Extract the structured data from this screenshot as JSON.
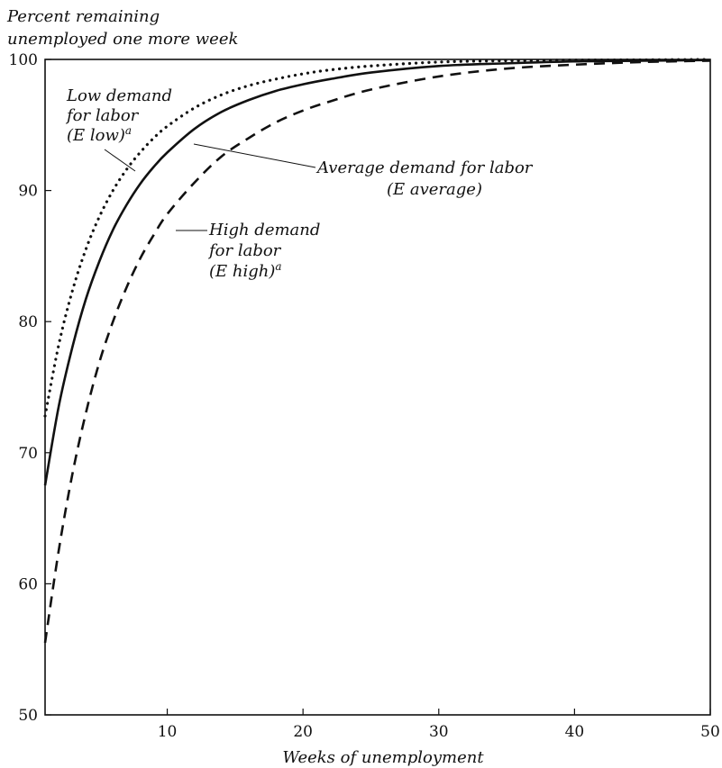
{
  "chart_data": {
    "type": "line",
    "title": "",
    "ylabel_lines": [
      "Percent remaining",
      "unemployed one more week"
    ],
    "xlabel": "Weeks of unemployment",
    "xlim": [
      1,
      50
    ],
    "ylim": [
      50,
      100
    ],
    "x_ticks": [
      10,
      20,
      30,
      40,
      50
    ],
    "x_tick_labels": [
      "10",
      "20",
      "30",
      "40",
      "50"
    ],
    "y_ticks": [
      50,
      60,
      70,
      80,
      90,
      100
    ],
    "y_tick_labels": [
      "50",
      "60",
      "70",
      "80",
      "90",
      "100"
    ],
    "grid": false,
    "series": [
      {
        "name": "Low demand for labor (E low)",
        "style": "dotted",
        "x": [
          1,
          2,
          3,
          4,
          5,
          6,
          7,
          8,
          9,
          10,
          12,
          14,
          16,
          18,
          20,
          22,
          25,
          30,
          35,
          40,
          45,
          50
        ],
        "y": [
          72.8,
          78.2,
          82.3,
          85.5,
          88.0,
          90.0,
          91.6,
          92.9,
          94.0,
          94.9,
          96.3,
          97.3,
          98.0,
          98.5,
          98.9,
          99.2,
          99.5,
          99.8,
          99.9,
          99.95,
          99.97,
          100
        ]
      },
      {
        "name": "Average demand for labor (E average)",
        "style": "solid",
        "x": [
          1,
          2,
          3,
          4,
          5,
          6,
          7,
          8,
          9,
          10,
          12,
          14,
          16,
          18,
          20,
          22,
          25,
          30,
          35,
          40,
          45,
          50
        ],
        "y": [
          67.5,
          73.5,
          78.0,
          81.7,
          84.6,
          87.0,
          88.9,
          90.5,
          91.8,
          92.9,
          94.7,
          96.0,
          96.9,
          97.6,
          98.1,
          98.5,
          99.0,
          99.5,
          99.7,
          99.85,
          99.9,
          99.95
        ]
      },
      {
        "name": "High demand for labor (E high)",
        "style": "dashed",
        "x": [
          1,
          2,
          3,
          4,
          5,
          6,
          7,
          8,
          9,
          10,
          12,
          14,
          16,
          18,
          20,
          22,
          25,
          30,
          35,
          40,
          45,
          50
        ],
        "y": [
          55.5,
          62.5,
          68.3,
          73.0,
          76.9,
          80.0,
          82.6,
          84.8,
          86.6,
          88.2,
          90.6,
          92.6,
          94.0,
          95.2,
          96.1,
          96.8,
          97.7,
          98.7,
          99.3,
          99.6,
          99.8,
          99.9
        ]
      }
    ],
    "annotations": {
      "low": {
        "lines": [
          "Low demand",
          "for labor",
          "(E low)"
        ],
        "sup": "a"
      },
      "avg": {
        "lines": [
          "Average demand for labor",
          "(E average)"
        ]
      },
      "high": {
        "lines": [
          "High demand",
          "for labor",
          "(E high)"
        ],
        "sup": "a"
      }
    }
  }
}
